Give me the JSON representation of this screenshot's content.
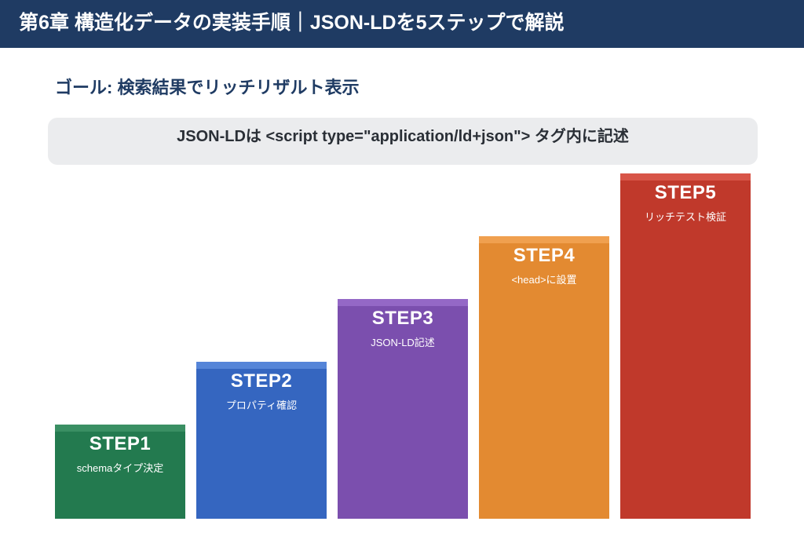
{
  "header": {
    "title": "第6章 構造化データの実装手順｜JSON-LDを5ステップで解説"
  },
  "goal": {
    "text": "ゴール: 検索結果でリッチリザルト表示"
  },
  "note": {
    "text": "JSON-LDは <script type=\"application/ld+json\"> タグ内に記述"
  },
  "steps": [
    {
      "label": "STEP1",
      "desc": "schemaタイプ決定",
      "color": "#237a4f",
      "cap_color": "#3a8f63"
    },
    {
      "label": "STEP2",
      "desc": "プロパティ確認",
      "color": "#3566c0",
      "cap_color": "#5585d8"
    },
    {
      "label": "STEP3",
      "desc": "JSON-LD記述",
      "color": "#7b4fae",
      "cap_color": "#9468c6"
    },
    {
      "label": "STEP4",
      "desc": "<head>に設置",
      "color": "#e38a31",
      "cap_color": "#f0a04f"
    },
    {
      "label": "STEP5",
      "desc": "リッチテスト検証",
      "color": "#c0392b",
      "cap_color": "#d85548"
    }
  ]
}
